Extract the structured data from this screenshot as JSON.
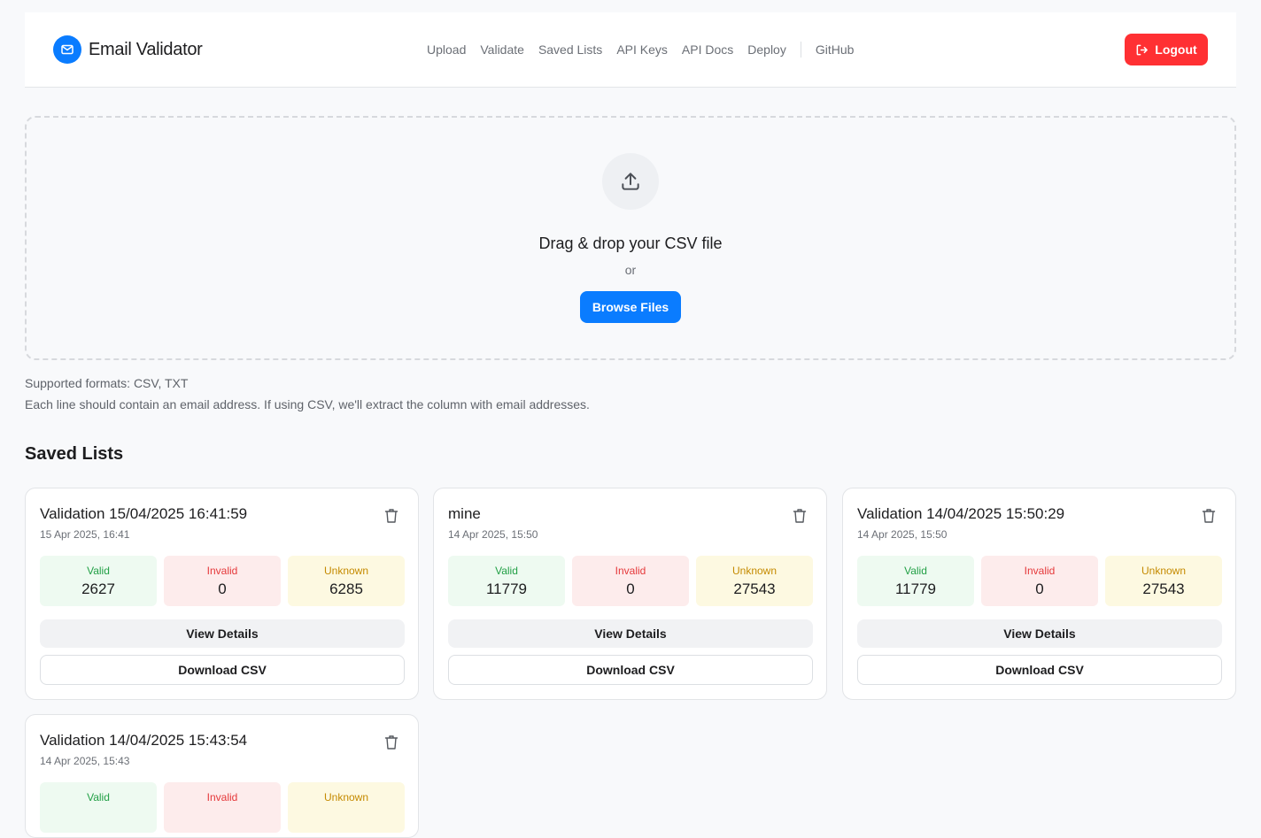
{
  "header": {
    "title": "Email Validator",
    "nav": [
      "Upload",
      "Validate",
      "Saved Lists",
      "API Keys",
      "API Docs",
      "Deploy"
    ],
    "github": "GitHub",
    "logout": "Logout"
  },
  "upload": {
    "title": "Drag & drop your CSV file",
    "or": "or",
    "browse": "Browse Files",
    "formats": "Supported formats: CSV, TXT",
    "note": "Each line should contain an email address. If using CSV, we'll extract the column with email addresses."
  },
  "saved": {
    "title": "Saved Lists",
    "labels": {
      "valid": "Valid",
      "invalid": "Invalid",
      "unknown": "Unknown",
      "view": "View Details",
      "download": "Download CSV"
    },
    "lists": [
      {
        "name": "Validation 15/04/2025 16:41:59",
        "date": "15 Apr 2025, 16:41",
        "valid": "2627",
        "invalid": "0",
        "unknown": "6285"
      },
      {
        "name": "mine",
        "date": "14 Apr 2025, 15:50",
        "valid": "11779",
        "invalid": "0",
        "unknown": "27543"
      },
      {
        "name": "Validation 14/04/2025 15:50:29",
        "date": "14 Apr 2025, 15:50",
        "valid": "11779",
        "invalid": "0",
        "unknown": "27543"
      },
      {
        "name": "Validation 14/04/2025 15:43:54",
        "date": "14 Apr 2025, 15:43"
      }
    ]
  },
  "colors": {
    "accent": "#0a7cff",
    "danger": "#ff3033"
  }
}
